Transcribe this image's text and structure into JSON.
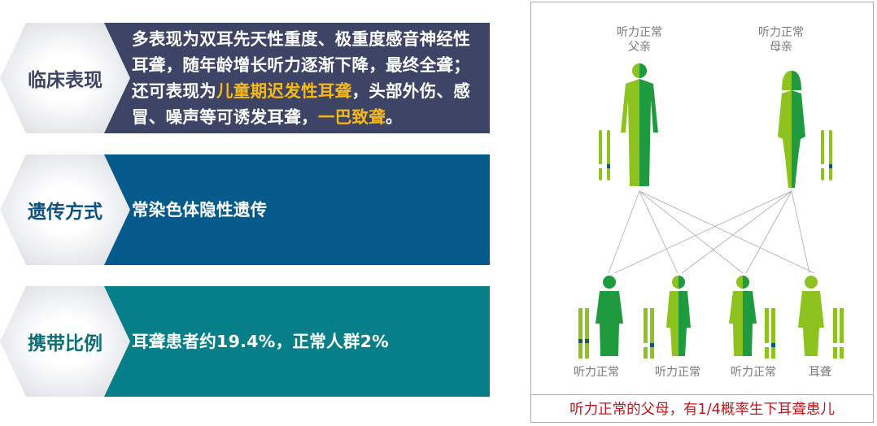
{
  "rows": [
    {
      "label": "临床表现",
      "color": "#3d4466",
      "label_color": "#3d4466",
      "text_parts": [
        "多表现为双耳先天性重度、极重度感音神经性耳聋，随年龄增长听力逐渐下降，最终全聋；还可表现为",
        "儿童期迟发性耳聋",
        "，头部外伤、感冒、噪声等可诱发耳聋，",
        "一巴致聋",
        "。"
      ]
    },
    {
      "label": "遗传方式",
      "color": "#045a8b",
      "label_color": "#0d527f",
      "text": "常染色体隐性遗传"
    },
    {
      "label": "携带比例",
      "color": "#067f88",
      "label_color": "#0c6f78",
      "text": "耳聋患者约19.4%，正常人群2%"
    }
  ],
  "diagram": {
    "parents": [
      {
        "label_line1": "听力正常",
        "label_line2": "父亲"
      },
      {
        "label_line1": "听力正常",
        "label_line2": "母亲"
      }
    ],
    "children": [
      {
        "label": "听力正常"
      },
      {
        "label": "听力正常"
      },
      {
        "label": "听力正常"
      },
      {
        "label": "耳聋"
      }
    ],
    "caption": "听力正常的父母，有1/4概率生下耳聋患儿",
    "colors": {
      "light_green": "#8dc21f",
      "dark_green": "#1f9a3f",
      "band": "#0c5c6e",
      "caption": "#c0161d",
      "highlight": "#f6b91a"
    }
  }
}
